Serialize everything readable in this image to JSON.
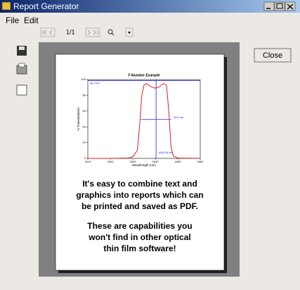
{
  "window": {
    "title": "Report Generator"
  },
  "menu": [
    "File",
    "Edit"
  ],
  "toolbar": {
    "page": "1/1"
  },
  "buttons": {
    "close": "Close"
  },
  "report": {
    "chart": {
      "type": "line",
      "title": "F-Number Example",
      "x_label": "Wavelength (nm)",
      "y_label": "% Transmittance",
      "xlim": [
        1610,
        1660
      ],
      "xticks": [
        1610,
        1620,
        1630,
        1640,
        1650,
        1660
      ],
      "ylim": [
        0,
        100
      ],
      "yticks": [
        0,
        20,
        40,
        60,
        80,
        100
      ],
      "x": [
        1610,
        1620,
        1628,
        1630,
        1632,
        1633,
        1634,
        1635,
        1636,
        1638,
        1640,
        1642,
        1643.5,
        1645,
        1646,
        1647,
        1648,
        1650,
        1660
      ],
      "values": [
        0,
        0,
        0.5,
        2,
        10,
        40,
        80,
        93,
        95,
        91,
        89,
        91,
        95,
        93,
        60,
        15,
        3,
        0.5,
        0
      ],
      "color": "#e02020",
      "markers": {
        "peak": {
          "label": "98.70%",
          "value": 98.7
        },
        "bandwidth": {
          "label": "13.5 nm",
          "value": 13.5
        },
        "center": {
          "label": "1640.35 nm",
          "value": 1640.35
        }
      },
      "marker_color": "#2020d0"
    },
    "paragraphs": [
      [
        "It's easy to combine text and",
        "graphics into reports which can",
        "be printed and saved as PDF."
      ],
      [
        "These are capabilities you",
        "won't find in other optical",
        "thin film software!"
      ]
    ]
  }
}
